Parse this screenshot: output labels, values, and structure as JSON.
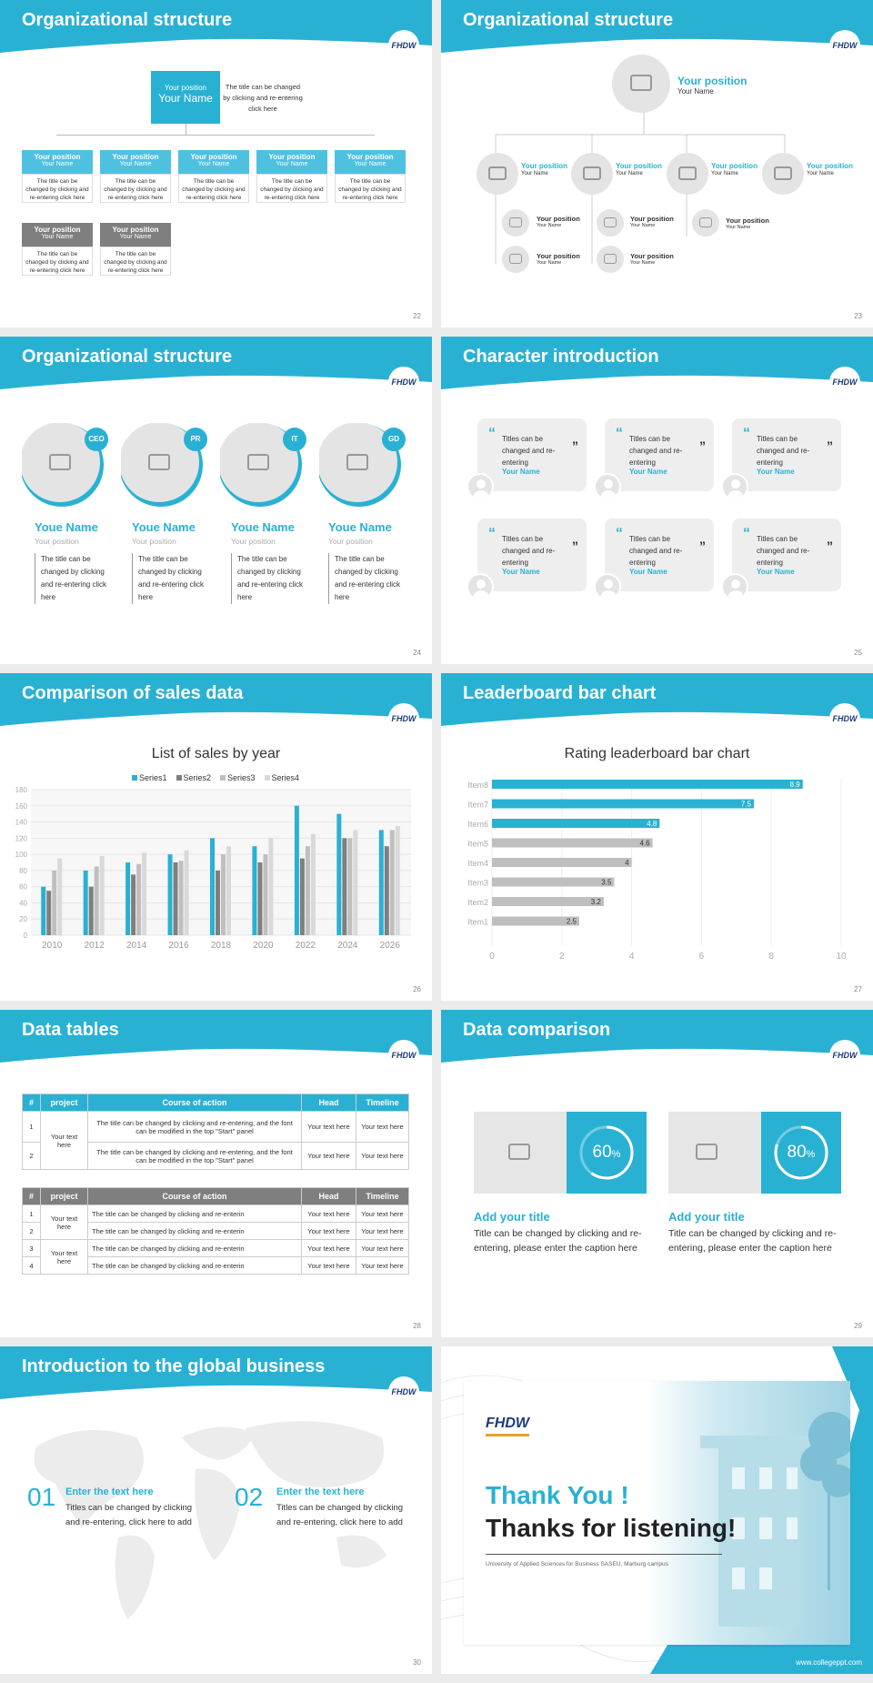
{
  "slides": {
    "s22": {
      "title": "Organizational structure",
      "page": "22",
      "top": {
        "pos": "Your position",
        "name": "Your Name",
        "desc": "The title can be changed by clicking and re-entering click here"
      },
      "boxes": [
        {
          "pos": "Your position",
          "name": "Your Name",
          "desc": "The title can be changed by clicking and re-entering click here"
        },
        {
          "pos": "Your position",
          "name": "Your Name",
          "desc": "The title can be changed by clicking and re-entering click here"
        },
        {
          "pos": "Your position",
          "name": "Your Name",
          "desc": "The title can be changed by clicking and re-entering click here"
        },
        {
          "pos": "Your position",
          "name": "Your Name",
          "desc": "The title can be changed by clicking and re-entering click here"
        },
        {
          "pos": "Your position",
          "name": "Your Name",
          "desc": "The title can be changed by clicking and re-entering click here"
        }
      ],
      "grey": [
        {
          "pos": "Your position",
          "name": "Your Name",
          "desc": "The title can be changed by clicking and re-entering click here"
        },
        {
          "pos": "Your position",
          "name": "Your Name",
          "desc": "The title can be changed by clicking and re-entering click here"
        }
      ]
    },
    "s23": {
      "title": "Organizational structure",
      "page": "23",
      "top": {
        "pos": "Your position",
        "name": "Your Name"
      },
      "mid": [
        {
          "pos": "Your position",
          "name": "Your Name"
        },
        {
          "pos": "Your position",
          "name": "Your Name"
        },
        {
          "pos": "Your position",
          "name": "Your Name"
        },
        {
          "pos": "Your position",
          "name": "Your Name"
        }
      ],
      "sub": [
        {
          "pos": "Your position",
          "name": "Your Name"
        },
        {
          "pos": "Your position",
          "name": "Your Name"
        },
        {
          "pos": "Your position",
          "name": "Your Name"
        },
        {
          "pos": "Your position",
          "name": "Your Name"
        },
        {
          "pos": "Your position",
          "name": "Your Name"
        }
      ]
    },
    "s24": {
      "title": "Organizational structure",
      "page": "24",
      "people": [
        {
          "tag": "CEO",
          "name": "Youe Name",
          "pos": "Your position",
          "desc": "The title can be changed by clicking and re-entering click here"
        },
        {
          "tag": "PR",
          "name": "Youe Name",
          "pos": "Your position",
          "desc": "The title can be changed by clicking and re-entering click here"
        },
        {
          "tag": "IT",
          "name": "Youe Name",
          "pos": "Your position",
          "desc": "The title can be changed by clicking and re-entering click here"
        },
        {
          "tag": "GD",
          "name": "Youe Name",
          "pos": "Your position",
          "desc": "The title can be changed by clicking and re-entering click here"
        }
      ]
    },
    "s25": {
      "title": "Character introduction",
      "page": "25",
      "quote_text": "Titles can be changed and re-entering",
      "name": "Your Name",
      "open_q": "“",
      "close_q": "”"
    },
    "s26": {
      "title": "Comparison of sales data",
      "page": "26"
    },
    "s27": {
      "title": "Leaderboard bar chart",
      "page": "27"
    },
    "s28": {
      "title": "Data tables",
      "page": "28",
      "headers": [
        "#",
        "project",
        "Course of action",
        "Head",
        "Timeline"
      ],
      "t1": {
        "proj": "Your text here",
        "rows": [
          {
            "n": "1",
            "course": "The title can be changed by clicking and re-entering, and the font can be modified in the top \"Start\" panel",
            "head": "Your text here",
            "time": "Your text here"
          },
          {
            "n": "2",
            "course": "The title can be changed by clicking and re-entering, and the font can be modified in the top \"Start\" panel",
            "head": "Your text here",
            "time": "Your text here"
          }
        ]
      },
      "t2": {
        "proj1": "Your text here",
        "proj2": "Your text here",
        "rows": [
          {
            "n": "1",
            "course": "The title can be changed by clicking and re-enterin",
            "head": "Your text here",
            "time": "Your text here"
          },
          {
            "n": "2",
            "course": "The title can be changed by clicking and re-enterin",
            "head": "Your text here",
            "time": "Your text here"
          },
          {
            "n": "3",
            "course": "The title can be changed by clicking and re-enterin",
            "head": "Your text here",
            "time": "Your text here"
          },
          {
            "n": "4",
            "course": "The title can be changed by clicking and re-enterin",
            "head": "Your text here",
            "time": "Your text here"
          }
        ]
      }
    },
    "s29": {
      "title": "Data comparison",
      "page": "29",
      "items": [
        {
          "pct": "60",
          "unit": "%",
          "value": 0.6,
          "heading": "Add your title",
          "desc": "Title can be changed by clicking and re-entering, please enter the caption here"
        },
        {
          "pct": "80",
          "unit": "%",
          "value": 0.8,
          "heading": "Add your title",
          "desc": "Title can be changed by clicking and re-entering, please enter the caption here"
        }
      ]
    },
    "s30": {
      "title": "Introduction to the global business",
      "page": "30",
      "items": [
        {
          "num": "01",
          "heading": "Enter the text here",
          "desc": "Titles can be changed by clicking and re-entering, click here to add"
        },
        {
          "num": "02",
          "heading": "Enter the text here",
          "desc": "Titles can be changed by clicking and re-entering, click here to add"
        }
      ]
    },
    "s31": {
      "logo": "FHDW",
      "thank": "Thank You !",
      "thanks": "Thanks for listening!",
      "sub": "University of Applied Sciences for Business SASEU, Marburg campus",
      "url": "www.collegeppt.com"
    }
  },
  "logo_text": "FHDW",
  "colors": {
    "teal": "#29b1d4",
    "grey": "#7f7f7f"
  },
  "chart_data": [
    {
      "type": "bar",
      "title": "List of sales by year",
      "categories": [
        "2010",
        "2012",
        "2014",
        "2016",
        "2018",
        "2020",
        "2022",
        "2024",
        "2026"
      ],
      "series": [
        {
          "name": "Series1",
          "color": "#29b1d4",
          "values": [
            60,
            80,
            90,
            100,
            120,
            110,
            160,
            150,
            130
          ]
        },
        {
          "name": "Series2",
          "color": "#7f7f7f",
          "values": [
            55,
            60,
            75,
            90,
            80,
            90,
            95,
            120,
            110
          ]
        },
        {
          "name": "Series3",
          "color": "#bfbfbf",
          "values": [
            80,
            85,
            88,
            92,
            100,
            100,
            110,
            120,
            130
          ]
        },
        {
          "name": "Series4",
          "color": "#d9d9d9",
          "values": [
            95,
            98,
            102,
            105,
            110,
            120,
            125,
            130,
            135
          ]
        }
      ],
      "ylim": [
        0,
        180
      ],
      "yticks": [
        0,
        20,
        40,
        60,
        80,
        100,
        120,
        140,
        160,
        180
      ],
      "legend": "top"
    },
    {
      "type": "bar",
      "orientation": "horizontal",
      "title": "Rating leaderboard bar chart",
      "categories": [
        "Item8",
        "Item7",
        "Item6",
        "Item5",
        "Item4",
        "Item3",
        "Item2",
        "Item1"
      ],
      "values": [
        8.9,
        7.5,
        4.8,
        4.6,
        4,
        3.5,
        3.2,
        2.5
      ],
      "labels": [
        "8.9",
        "7.5",
        "4.8",
        "4.6",
        "4",
        "3.5",
        "3.2",
        "2.5"
      ],
      "highlight": 3,
      "xlim": [
        0,
        10
      ],
      "xticks": [
        0,
        2,
        4,
        6,
        8,
        10
      ]
    }
  ]
}
